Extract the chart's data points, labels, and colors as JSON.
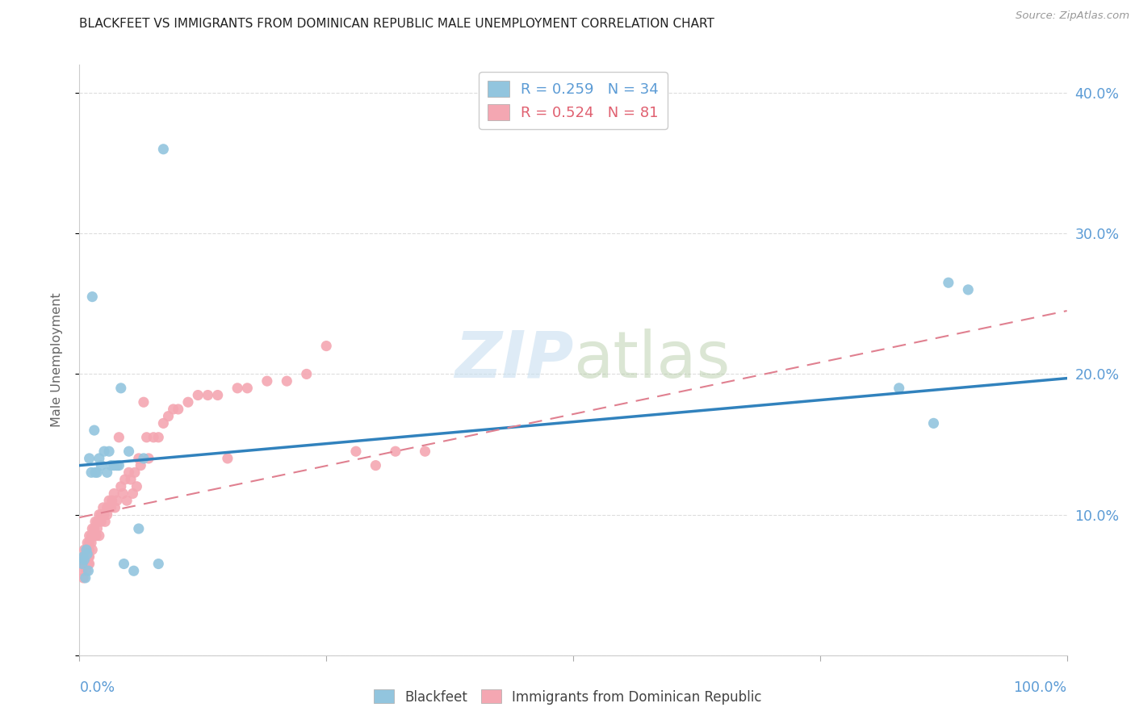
{
  "title": "BLACKFEET VS IMMIGRANTS FROM DOMINICAN REPUBLIC MALE UNEMPLOYMENT CORRELATION CHART",
  "source": "Source: ZipAtlas.com",
  "ylabel": "Male Unemployment",
  "xlim": [
    0.0,
    1.0
  ],
  "ylim": [
    0.0,
    0.42
  ],
  "blue_color": "#92c5de",
  "pink_color": "#f4a7b2",
  "blue_line_color": "#3182bd",
  "pink_line_color": "#e08090",
  "axis_tick_color": "#5b9bd5",
  "watermark_color": "#c8dff0",
  "blackfeet_x": [
    0.003,
    0.004,
    0.005,
    0.006,
    0.007,
    0.008,
    0.009,
    0.01,
    0.012,
    0.013,
    0.015,
    0.016,
    0.018,
    0.02,
    0.022,
    0.025,
    0.028,
    0.03,
    0.032,
    0.035,
    0.038,
    0.04,
    0.042,
    0.045,
    0.05,
    0.055,
    0.06,
    0.065,
    0.08,
    0.085,
    0.83,
    0.865,
    0.88,
    0.9
  ],
  "blackfeet_y": [
    0.065,
    0.07,
    0.068,
    0.055,
    0.075,
    0.072,
    0.06,
    0.14,
    0.13,
    0.255,
    0.16,
    0.13,
    0.13,
    0.14,
    0.135,
    0.145,
    0.13,
    0.145,
    0.135,
    0.135,
    0.135,
    0.135,
    0.19,
    0.065,
    0.145,
    0.06,
    0.09,
    0.14,
    0.065,
    0.36,
    0.19,
    0.165,
    0.265,
    0.26
  ],
  "domrep_x": [
    0.002,
    0.003,
    0.004,
    0.005,
    0.005,
    0.005,
    0.006,
    0.006,
    0.007,
    0.007,
    0.008,
    0.008,
    0.008,
    0.009,
    0.009,
    0.01,
    0.01,
    0.01,
    0.01,
    0.01,
    0.012,
    0.012,
    0.013,
    0.013,
    0.015,
    0.015,
    0.016,
    0.017,
    0.018,
    0.018,
    0.02,
    0.02,
    0.022,
    0.022,
    0.024,
    0.025,
    0.026,
    0.028,
    0.028,
    0.03,
    0.032,
    0.033,
    0.035,
    0.036,
    0.038,
    0.04,
    0.042,
    0.044,
    0.046,
    0.048,
    0.05,
    0.052,
    0.054,
    0.056,
    0.058,
    0.06,
    0.062,
    0.065,
    0.068,
    0.07,
    0.075,
    0.08,
    0.085,
    0.09,
    0.095,
    0.1,
    0.11,
    0.12,
    0.13,
    0.14,
    0.15,
    0.16,
    0.17,
    0.19,
    0.21,
    0.23,
    0.25,
    0.28,
    0.3,
    0.32,
    0.35
  ],
  "domrep_y": [
    0.065,
    0.06,
    0.055,
    0.07,
    0.065,
    0.075,
    0.068,
    0.072,
    0.06,
    0.065,
    0.07,
    0.075,
    0.08,
    0.065,
    0.07,
    0.08,
    0.075,
    0.07,
    0.065,
    0.085,
    0.08,
    0.085,
    0.09,
    0.075,
    0.085,
    0.09,
    0.095,
    0.085,
    0.09,
    0.095,
    0.1,
    0.085,
    0.095,
    0.1,
    0.105,
    0.1,
    0.095,
    0.105,
    0.1,
    0.11,
    0.105,
    0.11,
    0.115,
    0.105,
    0.11,
    0.155,
    0.12,
    0.115,
    0.125,
    0.11,
    0.13,
    0.125,
    0.115,
    0.13,
    0.12,
    0.14,
    0.135,
    0.18,
    0.155,
    0.14,
    0.155,
    0.155,
    0.165,
    0.17,
    0.175,
    0.175,
    0.18,
    0.185,
    0.185,
    0.185,
    0.14,
    0.19,
    0.19,
    0.195,
    0.195,
    0.2,
    0.22,
    0.145,
    0.135,
    0.145,
    0.145
  ],
  "blackfeet_trend_x": [
    0.0,
    1.0
  ],
  "blackfeet_trend_y": [
    0.135,
    0.197
  ],
  "domrep_trend_x": [
    0.0,
    1.0
  ],
  "domrep_trend_y": [
    0.098,
    0.245
  ],
  "xtick_positions": [
    0.0,
    0.25,
    0.5,
    0.75,
    1.0
  ],
  "ytick_positions": [
    0.0,
    0.1,
    0.2,
    0.3,
    0.4
  ],
  "yticklabels_right": [
    "",
    "10.0%",
    "20.0%",
    "30.0%",
    "40.0%"
  ]
}
